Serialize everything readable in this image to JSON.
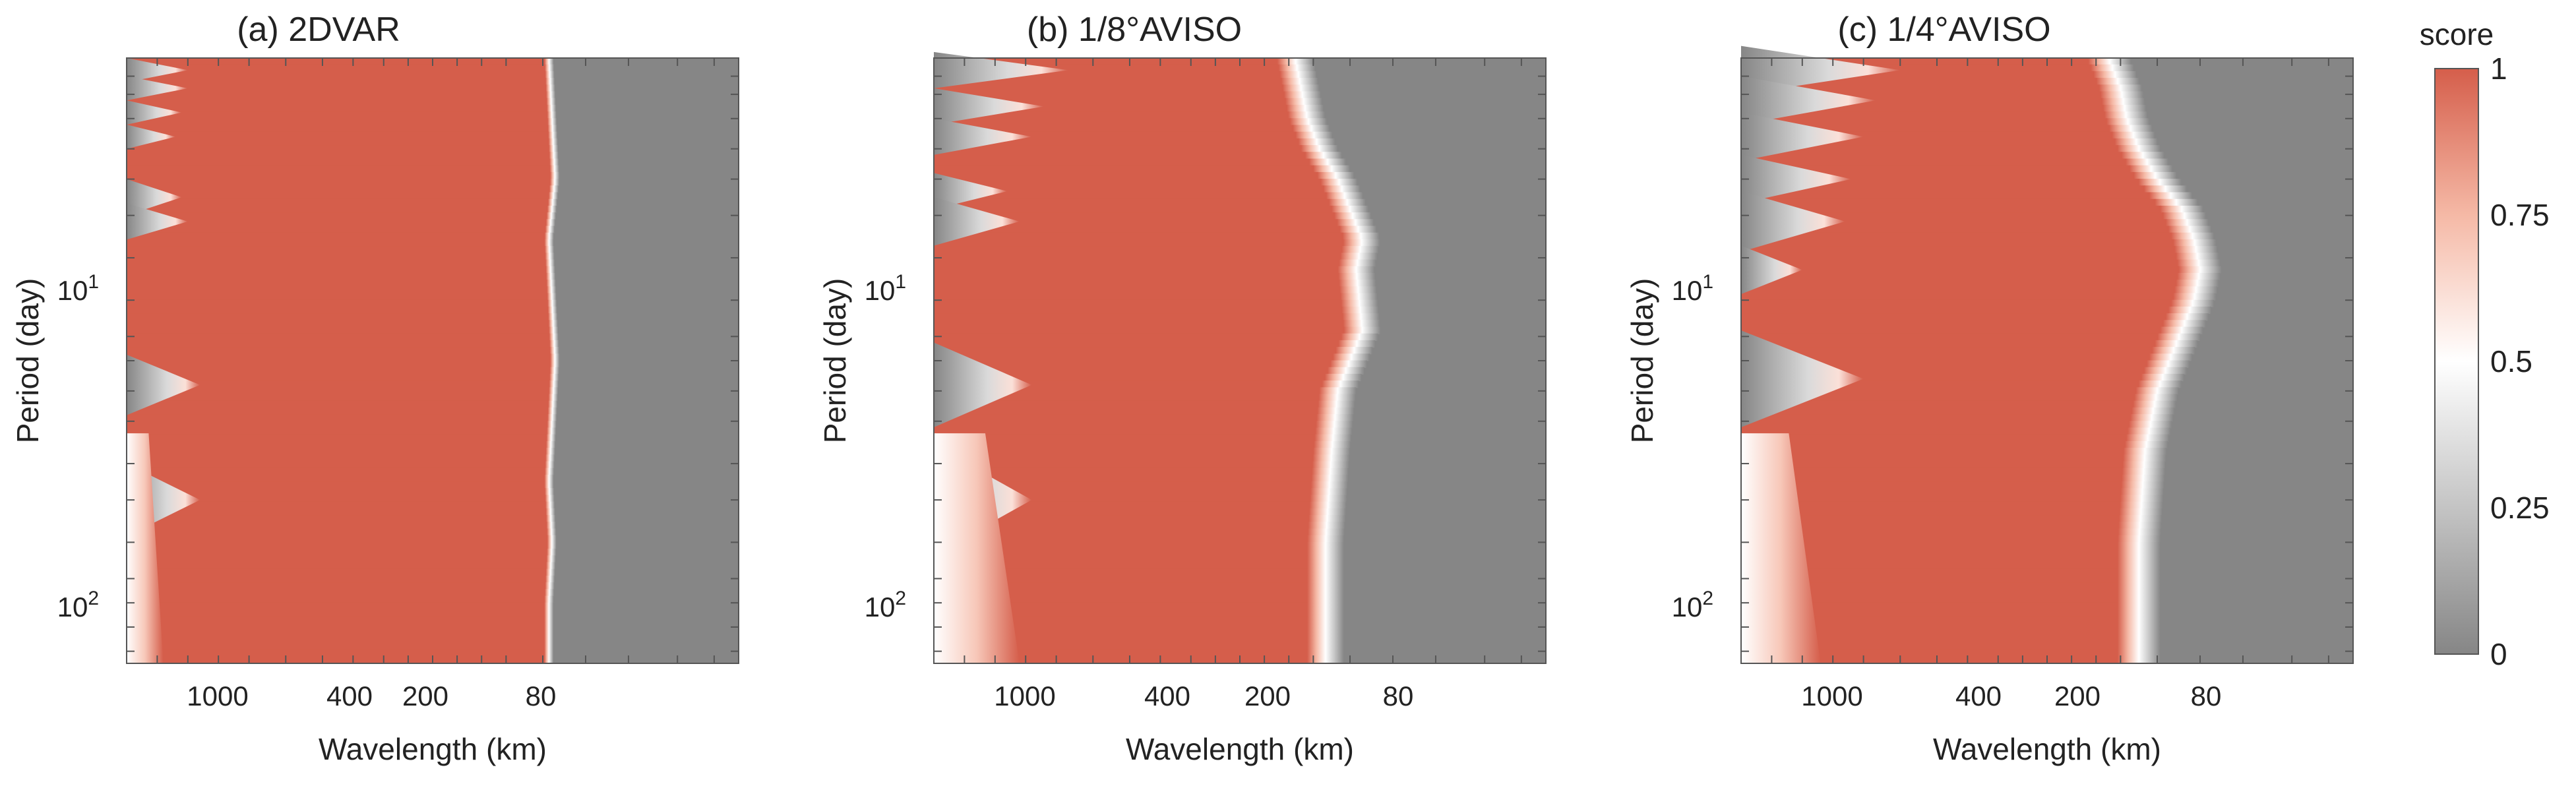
{
  "chart_data": {
    "type": "heatmap",
    "panels": [
      {
        "title": "(a) 2DVAR",
        "xlabel": "Wavelength (km)",
        "ylabel": "Period (day)",
        "x_ticks": [
          "1000",
          "400",
          "200",
          "80"
        ],
        "y_ticks": [
          {
            "base": "10",
            "exp": "1"
          },
          {
            "base": "10",
            "exp": "2"
          }
        ],
        "edge_profile": [
          [
            0.0,
            0.69
          ],
          [
            0.1,
            0.695
          ],
          [
            0.2,
            0.7
          ],
          [
            0.3,
            0.69
          ],
          [
            0.4,
            0.695
          ],
          [
            0.5,
            0.7
          ],
          [
            0.6,
            0.695
          ],
          [
            0.7,
            0.69
          ],
          [
            0.8,
            0.695
          ],
          [
            0.9,
            0.69
          ],
          [
            1.0,
            0.69
          ]
        ],
        "edge_width": 0.015,
        "left_notches": [
          {
            "y": 0.02,
            "depth": 0.1,
            "h": 0.02
          },
          {
            "y": 0.05,
            "depth": 0.1,
            "h": 0.02
          },
          {
            "y": 0.09,
            "depth": 0.09,
            "h": 0.02
          },
          {
            "y": 0.13,
            "depth": 0.08,
            "h": 0.02
          },
          {
            "y": 0.23,
            "depth": 0.09,
            "h": 0.03
          },
          {
            "y": 0.27,
            "depth": 0.1,
            "h": 0.03
          },
          {
            "y": 0.54,
            "depth": 0.12,
            "h": 0.05
          },
          {
            "y": 0.73,
            "depth": 0.12,
            "h": 0.06
          }
        ],
        "left_fade": 0.06
      },
      {
        "title": "(b) 1/8°AVISO",
        "xlabel": "Wavelength (km)",
        "ylabel": "Period (day)",
        "x_ticks": [
          "1000",
          "400",
          "200",
          "80"
        ],
        "y_ticks": [
          {
            "base": "10",
            "exp": "1"
          },
          {
            "base": "10",
            "exp": "2"
          }
        ],
        "edge_profile": [
          [
            0.0,
            0.59
          ],
          [
            0.05,
            0.6
          ],
          [
            0.1,
            0.61
          ],
          [
            0.15,
            0.63
          ],
          [
            0.2,
            0.66
          ],
          [
            0.25,
            0.68
          ],
          [
            0.3,
            0.7
          ],
          [
            0.35,
            0.69
          ],
          [
            0.45,
            0.7
          ],
          [
            0.55,
            0.66
          ],
          [
            0.65,
            0.65
          ],
          [
            0.8,
            0.64
          ],
          [
            0.9,
            0.64
          ],
          [
            1.0,
            0.64
          ]
        ],
        "edge_width": 0.06,
        "left_notches": [
          {
            "y": 0.02,
            "depth": 0.22,
            "h": 0.03
          },
          {
            "y": 0.08,
            "depth": 0.18,
            "h": 0.03
          },
          {
            "y": 0.13,
            "depth": 0.16,
            "h": 0.03
          },
          {
            "y": 0.22,
            "depth": 0.12,
            "h": 0.03
          },
          {
            "y": 0.27,
            "depth": 0.14,
            "h": 0.04
          },
          {
            "y": 0.54,
            "depth": 0.16,
            "h": 0.07
          },
          {
            "y": 0.73,
            "depth": 0.16,
            "h": 0.09
          }
        ],
        "left_fade": 0.14
      },
      {
        "title": "(c) 1/4°AVISO",
        "xlabel": "Wavelength (km)",
        "ylabel": "Period (day)",
        "x_ticks": [
          "1000",
          "400",
          "200",
          "80"
        ],
        "y_ticks": [
          {
            "base": "10",
            "exp": "1"
          },
          {
            "base": "10",
            "exp": "2"
          }
        ],
        "edge_profile": [
          [
            0.0,
            0.6
          ],
          [
            0.05,
            0.62
          ],
          [
            0.1,
            0.63
          ],
          [
            0.15,
            0.65
          ],
          [
            0.2,
            0.68
          ],
          [
            0.25,
            0.72
          ],
          [
            0.3,
            0.74
          ],
          [
            0.35,
            0.75
          ],
          [
            0.4,
            0.74
          ],
          [
            0.45,
            0.72
          ],
          [
            0.55,
            0.68
          ],
          [
            0.65,
            0.66
          ],
          [
            0.8,
            0.65
          ],
          [
            1.0,
            0.65
          ]
        ],
        "edge_width": 0.07,
        "left_notches": [
          {
            "y": 0.02,
            "depth": 0.26,
            "h": 0.04
          },
          {
            "y": 0.07,
            "depth": 0.22,
            "h": 0.04
          },
          {
            "y": 0.13,
            "depth": 0.2,
            "h": 0.04
          },
          {
            "y": 0.2,
            "depth": 0.18,
            "h": 0.04
          },
          {
            "y": 0.27,
            "depth": 0.17,
            "h": 0.05
          },
          {
            "y": 0.35,
            "depth": 0.1,
            "h": 0.04
          },
          {
            "y": 0.53,
            "depth": 0.2,
            "h": 0.08
          }
        ],
        "left_fade": 0.13
      }
    ],
    "colorbar": {
      "label": "score",
      "ticks": [
        "1",
        "0.75",
        "0.5",
        "0.25",
        "0"
      ],
      "range": [
        0,
        1
      ],
      "color_high": "#d55e4b",
      "color_mid": "#ffffff",
      "color_low": "#868686"
    }
  }
}
